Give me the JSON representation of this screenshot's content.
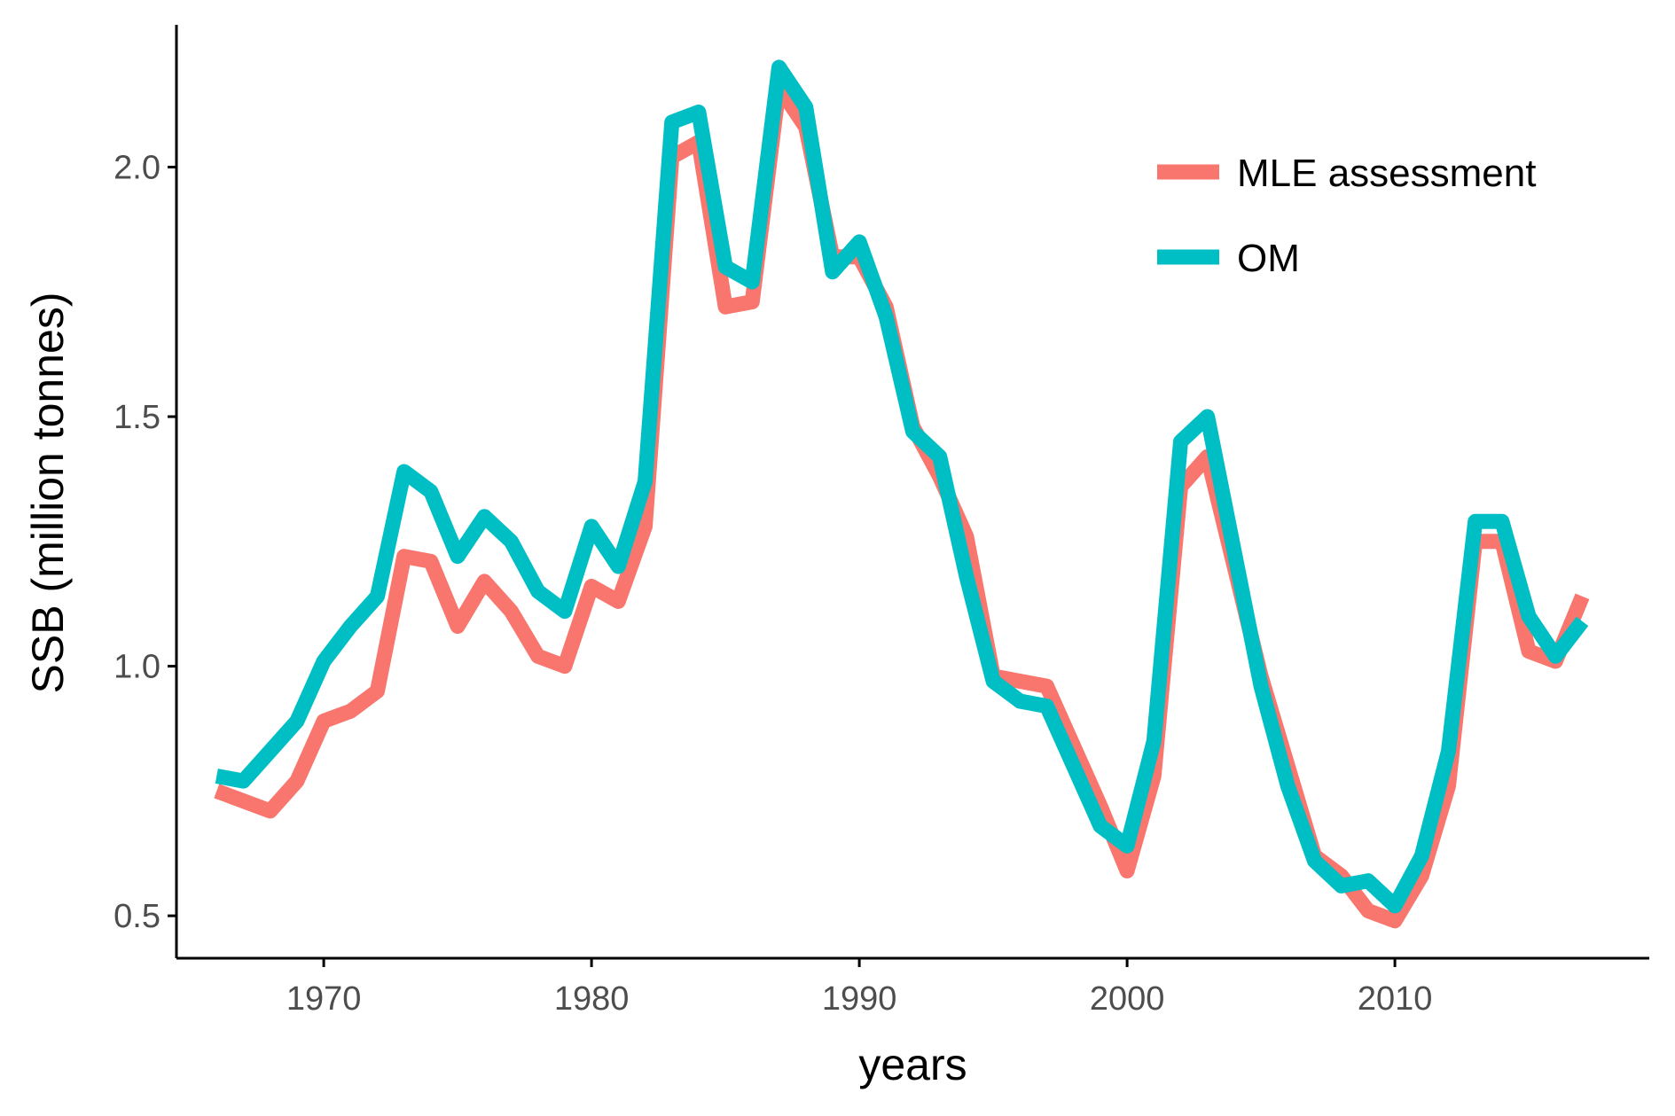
{
  "chart_data": {
    "type": "line",
    "xlabel": "years",
    "ylabel": "SSB (million tonnes)",
    "xlim": [
      1964.5,
      2019.5
    ],
    "ylim": [
      0.415,
      2.285
    ],
    "xticks": [
      1970,
      1980,
      1990,
      2000,
      2010
    ],
    "xtick_labels": [
      "1970",
      "1980",
      "1990",
      "2000",
      "2010"
    ],
    "yticks": [
      0.5,
      1.0,
      1.5,
      2.0
    ],
    "ytick_labels": [
      "0.5",
      "1.0",
      "1.5",
      "2.0"
    ],
    "grid": false,
    "legend_position": "top-right",
    "x": [
      1966,
      1967,
      1968,
      1969,
      1970,
      1971,
      1972,
      1973,
      1974,
      1975,
      1976,
      1977,
      1978,
      1979,
      1980,
      1981,
      1982,
      1983,
      1984,
      1985,
      1986,
      1987,
      1988,
      1989,
      1990,
      1991,
      1992,
      1993,
      1994,
      1995,
      1996,
      1997,
      1998,
      1999,
      2000,
      2001,
      2002,
      2003,
      2004,
      2005,
      2006,
      2007,
      2008,
      2009,
      2010,
      2011,
      2012,
      2013,
      2014,
      2015,
      2016,
      2017
    ],
    "series": [
      {
        "name": "MLE assessment",
        "color": "#F8766D",
        "values": [
          0.75,
          0.73,
          0.71,
          0.77,
          0.89,
          0.91,
          0.95,
          1.22,
          1.21,
          1.08,
          1.17,
          1.11,
          1.02,
          1.0,
          1.16,
          1.13,
          1.28,
          2.02,
          2.05,
          1.72,
          1.73,
          2.16,
          2.08,
          1.82,
          1.82,
          1.72,
          1.48,
          1.38,
          1.26,
          0.98,
          0.97,
          0.96,
          0.84,
          0.72,
          0.59,
          0.78,
          1.36,
          1.42,
          1.2,
          0.98,
          0.8,
          0.62,
          0.58,
          0.51,
          0.49,
          0.58,
          0.76,
          1.25,
          1.25,
          1.03,
          1.01,
          1.14
        ]
      },
      {
        "name": "OM",
        "color": "#00BFC4",
        "values": [
          0.78,
          0.77,
          0.83,
          0.89,
          1.01,
          1.08,
          1.14,
          1.39,
          1.35,
          1.22,
          1.3,
          1.25,
          1.15,
          1.11,
          1.28,
          1.2,
          1.37,
          2.09,
          2.11,
          1.8,
          1.77,
          2.2,
          2.12,
          1.79,
          1.85,
          1.7,
          1.47,
          1.42,
          1.18,
          0.97,
          0.93,
          0.92,
          0.8,
          0.68,
          0.64,
          0.85,
          1.45,
          1.5,
          1.23,
          0.96,
          0.76,
          0.61,
          0.56,
          0.57,
          0.52,
          0.62,
          0.83,
          1.29,
          1.29,
          1.1,
          1.02,
          1.09
        ]
      }
    ]
  }
}
